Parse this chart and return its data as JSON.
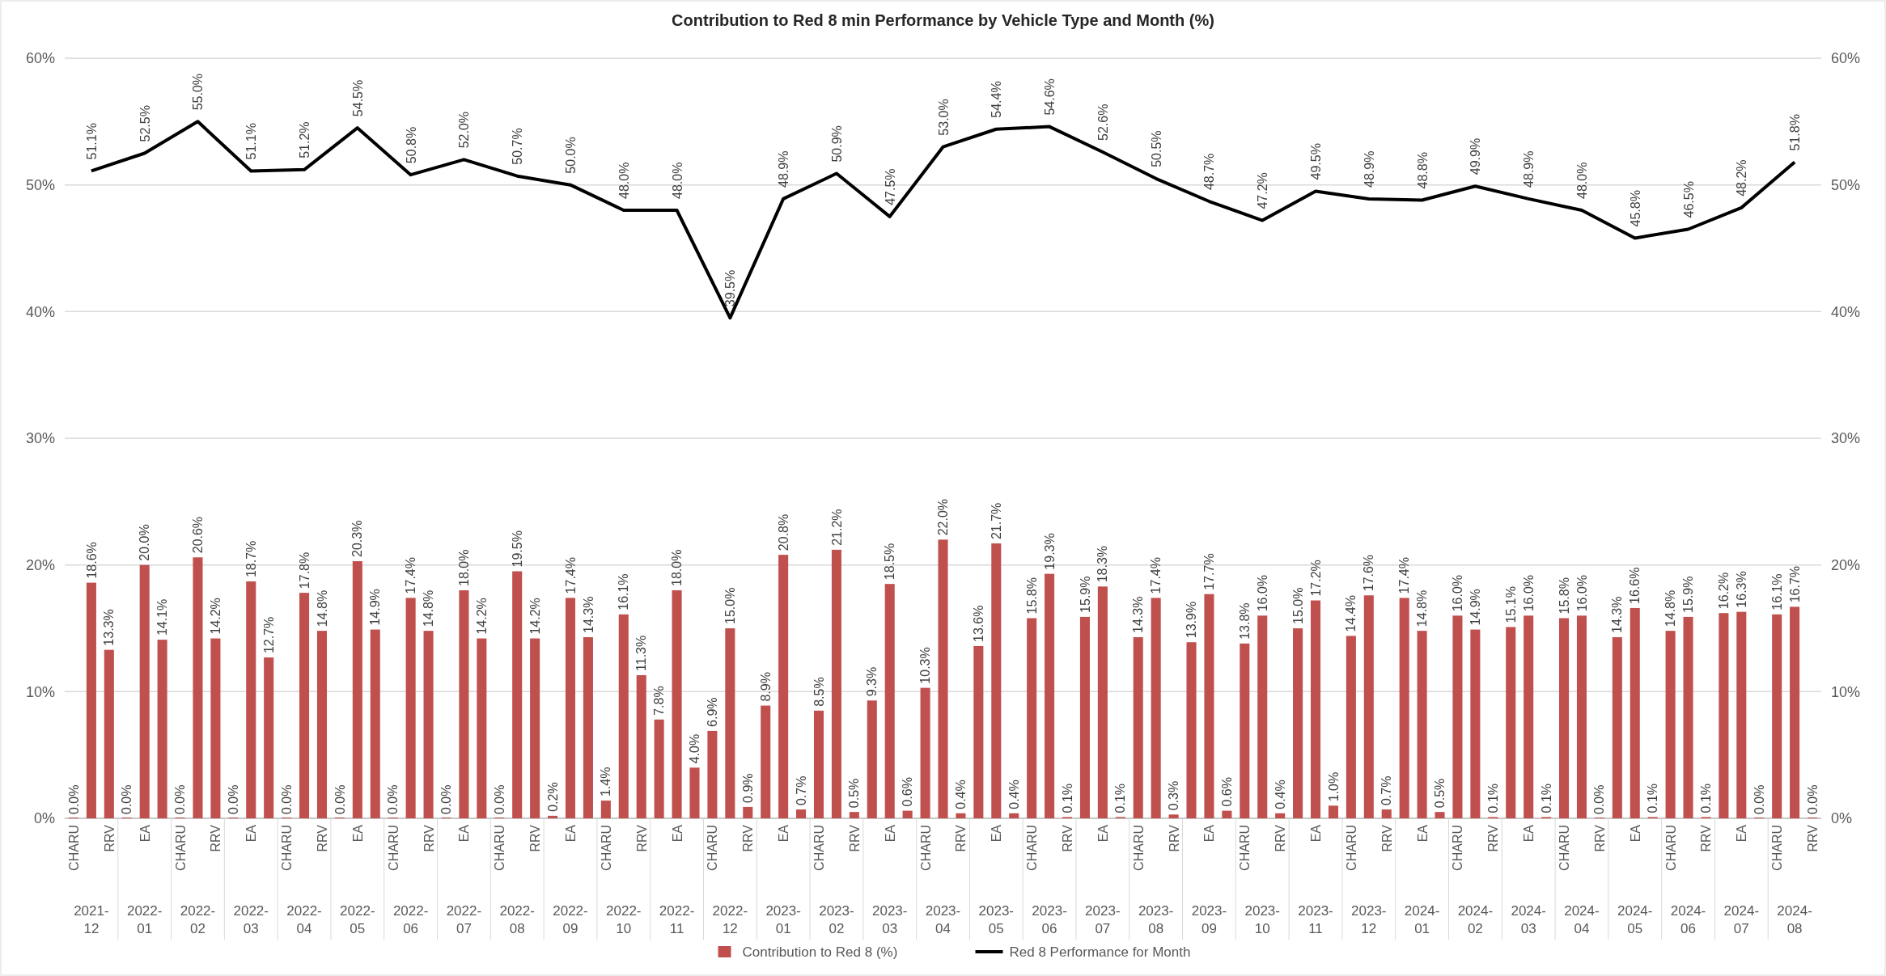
{
  "chart_data": {
    "type": "bar",
    "title": "Contribution to Red 8 min Performance by Vehicle Type and Month (%)",
    "categories": [
      "2021-12",
      "2022-01",
      "2022-02",
      "2022-03",
      "2022-04",
      "2022-05",
      "2022-06",
      "2022-07",
      "2022-08",
      "2022-09",
      "2022-10",
      "2022-11",
      "2022-12",
      "2023-01",
      "2023-02",
      "2023-03",
      "2023-04",
      "2023-05",
      "2023-06",
      "2023-07",
      "2023-08",
      "2023-09",
      "2023-10",
      "2023-11",
      "2023-12",
      "2024-01",
      "2024-02",
      "2024-03",
      "2024-04",
      "2024-05",
      "2024-06",
      "2024-07",
      "2024-08"
    ],
    "series": [
      {
        "name": "Contribution to Red 8 (%)",
        "color": "#c0504d",
        "values": [
          0,
          0,
          0,
          0,
          0,
          0,
          0,
          0,
          0,
          0.2,
          1.4,
          7.8,
          6.9,
          8.9,
          8.5,
          9.3,
          10.3,
          13.6,
          15.8,
          15.9,
          14.3,
          13.9,
          13.8,
          15.0,
          14.4,
          17.4,
          16.0,
          15.1,
          15.8,
          14.3,
          14.8,
          16.2,
          16.1
        ],
        "value_labels": [
          "0.0%",
          "0.0%",
          "0.0%",
          "0.0%",
          "0.0%",
          "0.0%",
          "0.0%",
          "0.0%",
          "0.0%",
          "0.2%",
          "1.4%",
          "7.8%",
          "6.9%",
          "8.9%",
          "8.5%",
          "9.3%",
          "10.3%",
          "13.6%",
          "15.8%",
          "15.9%",
          "14.3%",
          "13.9%",
          "13.8%",
          "15.0%",
          "14.4%",
          "17.4%",
          "16.0%",
          "15.1%",
          "15.8%",
          "14.3%",
          "14.8%",
          "16.2%",
          "16.1%"
        ]
      },
      {
        "color": "#c0504d",
        "values": [
          18.6,
          20.0,
          20.6,
          18.7,
          17.8,
          20.3,
          17.4,
          18.0,
          19.5,
          17.4,
          16.1,
          18.0,
          15.0,
          20.8,
          21.2,
          18.5,
          22.0,
          21.7,
          19.3,
          18.3,
          17.4,
          17.7,
          16.0,
          17.2,
          17.6,
          14.8,
          14.9,
          16.0,
          16.0,
          16.6,
          15.9,
          16.3,
          16.7
        ],
        "value_labels": [
          "18.6%",
          "20.0%",
          "20.6%",
          "18.7%",
          "17.8%",
          "20.3%",
          "17.4%",
          "18.0%",
          "19.5%",
          "17.4%",
          "16.1%",
          "18.0%",
          "15.0%",
          "20.8%",
          "21.2%",
          "18.5%",
          "22.0%",
          "21.7%",
          "19.3%",
          "18.3%",
          "17.4%",
          "17.7%",
          "16.0%",
          "17.2%",
          "17.6%",
          "14.8%",
          "14.9%",
          "16.0%",
          "16.0%",
          "16.6%",
          "15.9%",
          "16.3%",
          "16.7%"
        ]
      },
      {
        "color": "#c0504d",
        "values": [
          13.3,
          14.1,
          14.2,
          12.7,
          14.8,
          14.9,
          14.8,
          14.2,
          14.2,
          14.3,
          11.3,
          4.0,
          0.9,
          0.7,
          0.5,
          0.6,
          0.4,
          0.4,
          0.1,
          0.1,
          0.3,
          0.6,
          0.4,
          1.0,
          0.7,
          0.5,
          0.1,
          0.1,
          0,
          0.1,
          0.1,
          0,
          0
        ],
        "value_labels": [
          "13.3%",
          "14.1%",
          "14.2%",
          "12.7%",
          "14.8%",
          "14.9%",
          "14.8%",
          "14.2%",
          "14.2%",
          "14.3%",
          "11.3%",
          "4.0%",
          "0.9%",
          "0.7%",
          "0.5%",
          "0.6%",
          "0.4%",
          "0.4%",
          "0.1%",
          "0.1%",
          "0.3%",
          "0.6%",
          "0.4%",
          "1.0%",
          "0.7%",
          "0.5%",
          "0.1%",
          "0.1%",
          "0.0%",
          "0.1%",
          "0.1%",
          "0.0%",
          "0.0%"
        ]
      },
      {
        "name": "Red 8 Performance for Month",
        "type": "line",
        "axis": "y2",
        "color": "#000000",
        "values": [
          51.1,
          52.5,
          55.0,
          51.1,
          51.2,
          54.5,
          50.8,
          52.0,
          50.7,
          50.0,
          48.0,
          48.0,
          39.5,
          48.9,
          50.9,
          47.5,
          53.0,
          54.4,
          54.6,
          52.6,
          50.5,
          48.7,
          47.2,
          49.5,
          48.9,
          48.8,
          49.9,
          48.9,
          48.0,
          45.8,
          46.5,
          48.2,
          51.8
        ],
        "value_labels": [
          "51.1%",
          "52.5%",
          "55.0%",
          "51.1%",
          "51.2%",
          "54.5%",
          "50.8%",
          "52.0%",
          "50.7%",
          "50.0%",
          "48.0%",
          "48.0%",
          "39.5%",
          "48.9%",
          "50.9%",
          "47.5%",
          "53.0%",
          "54.4%",
          "54.6%",
          "52.6%",
          "50.5%",
          "48.7%",
          "47.2%",
          "49.5%",
          "48.9%",
          "48.8%",
          "49.9%",
          "48.9%",
          "48.0%",
          "45.8%",
          "46.5%",
          "48.2%",
          "51.8%"
        ]
      }
    ],
    "annotations": [
      "CHARU",
      "RRV",
      "EA",
      "CHARU",
      "RRV",
      "EA",
      "CHARU",
      "RRV",
      "EA",
      "CHARU",
      "RRV",
      "EA",
      "CHARU",
      "RRV",
      "EA",
      "CHARU",
      "RRV",
      "EA",
      "CHARU",
      "RRV",
      "EA",
      "CHARU",
      "RRV",
      "EA",
      "CHARU",
      "RRV",
      "EA",
      "CHARU",
      "RRV",
      "EA",
      "CHARU",
      "RRV",
      "EA",
      "CHARU",
      "RRV",
      "EA",
      "CHARU",
      "RRV",
      "EA",
      "CHARU",
      "RRV",
      "EA",
      "CHARU",
      "RRV",
      "EA",
      "CHARU",
      "RRV",
      "EA",
      "CHARU",
      "RRV"
    ],
    "ylim": [
      0,
      60
    ],
    "yticks": [
      {
        "value": 0,
        "label": "0%"
      },
      {
        "value": 10,
        "label": "10%"
      },
      {
        "value": 20,
        "label": "20%"
      },
      {
        "value": 30,
        "label": "30%"
      },
      {
        "value": 40,
        "label": "40%"
      },
      {
        "value": 50,
        "label": "50%"
      },
      {
        "value": 60,
        "label": "60%"
      }
    ],
    "y2lim": [
      0,
      60
    ],
    "y2ticks": [
      {
        "value": 0,
        "label": "0%"
      },
      {
        "value": 10,
        "label": "10%"
      },
      {
        "value": 20,
        "label": "20%"
      },
      {
        "value": 30,
        "label": "30%"
      },
      {
        "value": 40,
        "label": "40%"
      },
      {
        "value": 50,
        "label": "50%"
      },
      {
        "value": 60,
        "label": "60%"
      }
    ],
    "grid": "y",
    "legend": "bottom"
  }
}
